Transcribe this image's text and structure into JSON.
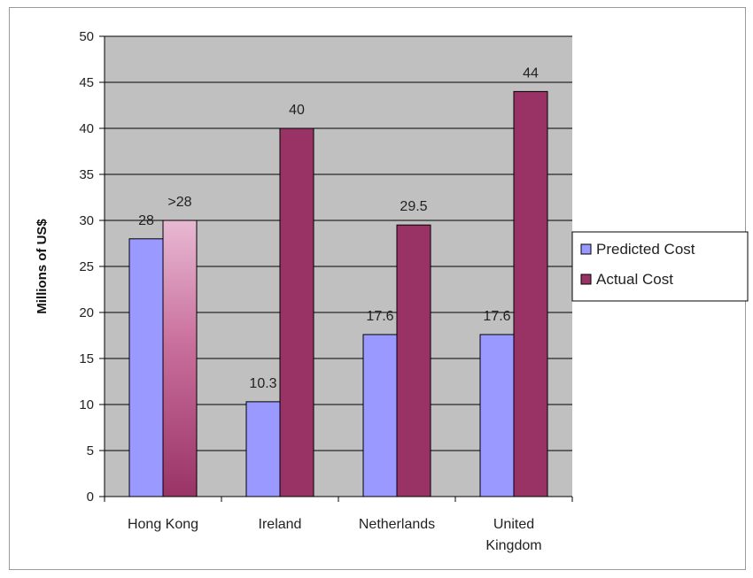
{
  "chart_data": {
    "type": "bar",
    "title": "",
    "ylabel": "Millions of US$",
    "xlabel": "",
    "ylim": [
      0,
      50
    ],
    "yticks": [
      0,
      5,
      10,
      15,
      20,
      25,
      30,
      35,
      40,
      45,
      50
    ],
    "grid": true,
    "legend_position": "right",
    "categories": [
      "Hong Kong",
      "Ireland",
      "Netherlands",
      "United Kingdom"
    ],
    "series": [
      {
        "name": "Predicted Cost",
        "color": "#9999ff",
        "values": [
          28,
          10.3,
          17.6,
          17.6
        ],
        "labels": [
          "28",
          "10.3",
          "17.6",
          "17.6"
        ]
      },
      {
        "name": "Actual Cost",
        "color": "#993366",
        "values": [
          30,
          40,
          29.5,
          44
        ],
        "labels": [
          ">28",
          "40",
          "29.5",
          "44"
        ]
      }
    ]
  }
}
